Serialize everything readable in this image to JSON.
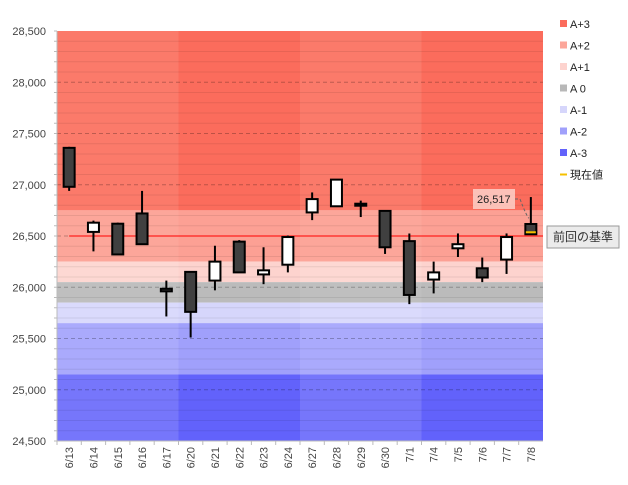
{
  "chart_data": {
    "type": "candlestick",
    "ylim": [
      24500,
      28500
    ],
    "y_ticks": [
      "28,500",
      "28,000",
      "27,500",
      "27,000",
      "26,500",
      "26,000",
      "25,500",
      "25,000",
      "24,500"
    ],
    "y_tick_values": [
      28500,
      28000,
      27500,
      27000,
      26500,
      26000,
      25500,
      25000,
      24500
    ],
    "categories": [
      "6/13",
      "6/14",
      "6/15",
      "6/16",
      "6/17",
      "6/20",
      "6/21",
      "6/22",
      "6/23",
      "6/24",
      "6/27",
      "6/28",
      "6/29",
      "6/30",
      "7/1",
      "7/4",
      "7/5",
      "7/6",
      "7/7",
      "7/8"
    ],
    "ohlc": [
      [
        27360,
        27370,
        26940,
        26980
      ],
      [
        26540,
        26650,
        26350,
        26630
      ],
      [
        26620,
        26630,
        26320,
        26320
      ],
      [
        26720,
        26940,
        26420,
        26420
      ],
      [
        25985,
        26065,
        25715,
        25960
      ],
      [
        26150,
        26150,
        25510,
        25760
      ],
      [
        26065,
        26405,
        25970,
        26250
      ],
      [
        26445,
        26460,
        26145,
        26145
      ],
      [
        26125,
        26390,
        26030,
        26165
      ],
      [
        26220,
        26505,
        26145,
        26490
      ],
      [
        26730,
        26925,
        26655,
        26860
      ],
      [
        26790,
        27050,
        26790,
        27050
      ],
      [
        26815,
        26845,
        26685,
        26805
      ],
      [
        26745,
        26745,
        26325,
        26390
      ],
      [
        26450,
        26525,
        25835,
        25925
      ],
      [
        26075,
        26250,
        25940,
        26145
      ],
      [
        26380,
        26525,
        26295,
        26420
      ],
      [
        26185,
        26290,
        26050,
        26095
      ],
      [
        26270,
        26525,
        26130,
        26490
      ],
      [
        26617,
        26880,
        26517,
        26517
      ]
    ],
    "bands": [
      {
        "name": "A+3",
        "from": 26750,
        "to": 28500,
        "color": "#fb7a6a",
        "color_alt": "#fb6c5c"
      },
      {
        "name": "A+2",
        "from": 26250,
        "to": 26750,
        "color": "#fca69a",
        "color_alt": "#fca094"
      },
      {
        "name": "A+1",
        "from": 26050,
        "to": 26250,
        "color": "#fdd8d3",
        "color_alt": "#fdd3ce"
      },
      {
        "name": "A 0",
        "from": 25850,
        "to": 26050,
        "color": "#bfbfbf",
        "color_alt": "#bbbbbb"
      },
      {
        "name": "A-1",
        "from": 25650,
        "to": 25850,
        "color": "#dadafc",
        "color_alt": "#d6d6fb"
      },
      {
        "name": "A-2",
        "from": 25150,
        "to": 25650,
        "color": "#aaaafc",
        "color_alt": "#a0a0fb"
      },
      {
        "name": "A-3",
        "from": 24500,
        "to": 25150,
        "color": "#7676fb",
        "color_alt": "#6262fb"
      }
    ],
    "legend": [
      {
        "label": "A+3",
        "color": "#fb6c5c"
      },
      {
        "label": "A+2",
        "color": "#fca69a"
      },
      {
        "label": "A+1",
        "color": "#fdd3ce"
      },
      {
        "label": "A 0",
        "color": "#b8b8b8"
      },
      {
        "label": "A-1",
        "color": "#d6d6fb"
      },
      {
        "label": "A-2",
        "color": "#a0a0fb"
      },
      {
        "label": "A-3",
        "color": "#6262fb"
      },
      {
        "label": "現在値",
        "color": "#f5c000",
        "marker": "line"
      }
    ],
    "legend_position": "right",
    "reference_line": {
      "value": 26500,
      "label": "前回の基準",
      "color": "#ff0000"
    },
    "current_value": {
      "value": 26517,
      "label": "26,517"
    }
  }
}
